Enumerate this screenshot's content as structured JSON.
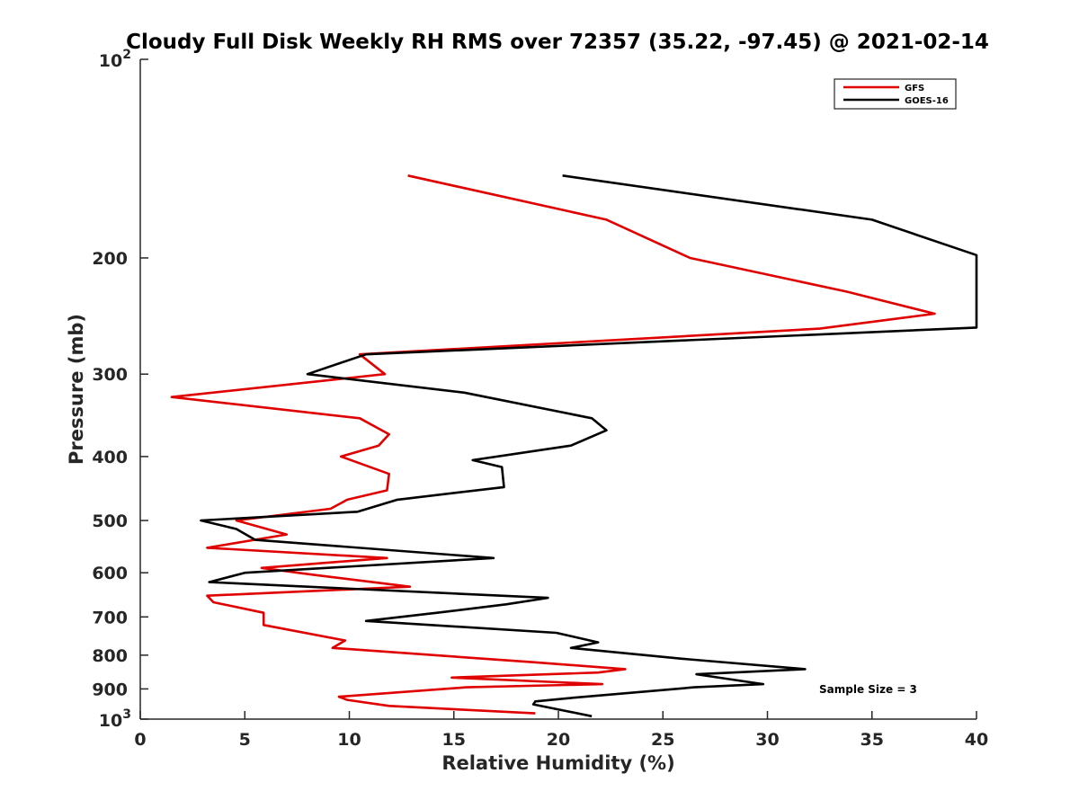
{
  "chart_data": {
    "type": "line",
    "title": "Cloudy Full Disk Weekly RH RMS over 72357 (35.22, -97.45) @ 2021-02-14",
    "xlabel": "Relative Humidity (%)",
    "ylabel": "Pressure (mb)",
    "xlim": [
      0,
      40
    ],
    "ylim": [
      100,
      1000
    ],
    "y_scale": "log",
    "y_reversed": true,
    "grid": false,
    "legend_position": "top-right",
    "x_ticks": [
      0,
      5,
      10,
      15,
      20,
      25,
      30,
      35,
      40
    ],
    "x_tick_labels": [
      "0",
      "5",
      "10",
      "15",
      "20",
      "25",
      "30",
      "35",
      "40"
    ],
    "y_ticks": [
      200,
      300,
      400,
      500,
      600,
      700,
      800,
      900
    ],
    "y_tick_labels": [
      "200",
      "300",
      "400",
      "500",
      "600",
      "700",
      "800",
      "900"
    ],
    "y_tick_top": {
      "base": "10",
      "exp": "2"
    },
    "y_tick_bottom": {
      "base": "10",
      "exp": "3"
    },
    "annotation": "Sample Size = 3",
    "series": [
      {
        "name": "GFS",
        "color": "#e00000",
        "points": [
          [
            12.8,
            150
          ],
          [
            22.3,
            175
          ],
          [
            26.3,
            200
          ],
          [
            33.8,
            225
          ],
          [
            38.0,
            243
          ],
          [
            32.5,
            256
          ],
          [
            10.5,
            280
          ],
          [
            11.7,
            300
          ],
          [
            1.5,
            325
          ],
          [
            10.5,
            350
          ],
          [
            11.9,
            370
          ],
          [
            11.4,
            385
          ],
          [
            9.6,
            400
          ],
          [
            11.9,
            425
          ],
          [
            11.8,
            450
          ],
          [
            9.9,
            465
          ],
          [
            9.1,
            480
          ],
          [
            4.6,
            500
          ],
          [
            7.0,
            525
          ],
          [
            3.2,
            550
          ],
          [
            11.8,
            570
          ],
          [
            5.8,
            590
          ],
          [
            8.4,
            605
          ],
          [
            12.9,
            630
          ],
          [
            3.2,
            650
          ],
          [
            3.5,
            665
          ],
          [
            5.9,
            690
          ],
          [
            5.9,
            720
          ],
          [
            9.8,
            760
          ],
          [
            9.2,
            780
          ],
          [
            18.8,
            820
          ],
          [
            23.2,
            840
          ],
          [
            21.9,
            850
          ],
          [
            14.9,
            865
          ],
          [
            22.1,
            885
          ],
          [
            15.6,
            895
          ],
          [
            9.5,
            925
          ],
          [
            9.9,
            935
          ],
          [
            11.9,
            955
          ],
          [
            18.9,
            980
          ]
        ]
      },
      {
        "name": "GOES-16",
        "color": "#000000",
        "points": [
          [
            20.2,
            150
          ],
          [
            35.0,
            175
          ],
          [
            40.0,
            198
          ],
          [
            40.0,
            255
          ],
          [
            10.8,
            280
          ],
          [
            8.0,
            300
          ],
          [
            15.5,
            320
          ],
          [
            21.6,
            350
          ],
          [
            22.3,
            365
          ],
          [
            20.6,
            385
          ],
          [
            15.9,
            405
          ],
          [
            17.3,
            415
          ],
          [
            17.4,
            445
          ],
          [
            12.3,
            465
          ],
          [
            10.4,
            485
          ],
          [
            2.9,
            500
          ],
          [
            4.6,
            515
          ],
          [
            5.5,
            535
          ],
          [
            16.9,
            570
          ],
          [
            5.0,
            600
          ],
          [
            3.3,
            620
          ],
          [
            19.5,
            655
          ],
          [
            17.5,
            670
          ],
          [
            14.2,
            690
          ],
          [
            10.8,
            710
          ],
          [
            19.9,
            740
          ],
          [
            21.9,
            765
          ],
          [
            20.6,
            780
          ],
          [
            25.9,
            810
          ],
          [
            31.8,
            840
          ],
          [
            26.6,
            855
          ],
          [
            29.8,
            885
          ],
          [
            26.5,
            895
          ],
          [
            20.4,
            930
          ],
          [
            18.9,
            940
          ],
          [
            18.8,
            950
          ],
          [
            21.6,
            990
          ]
        ]
      }
    ]
  }
}
